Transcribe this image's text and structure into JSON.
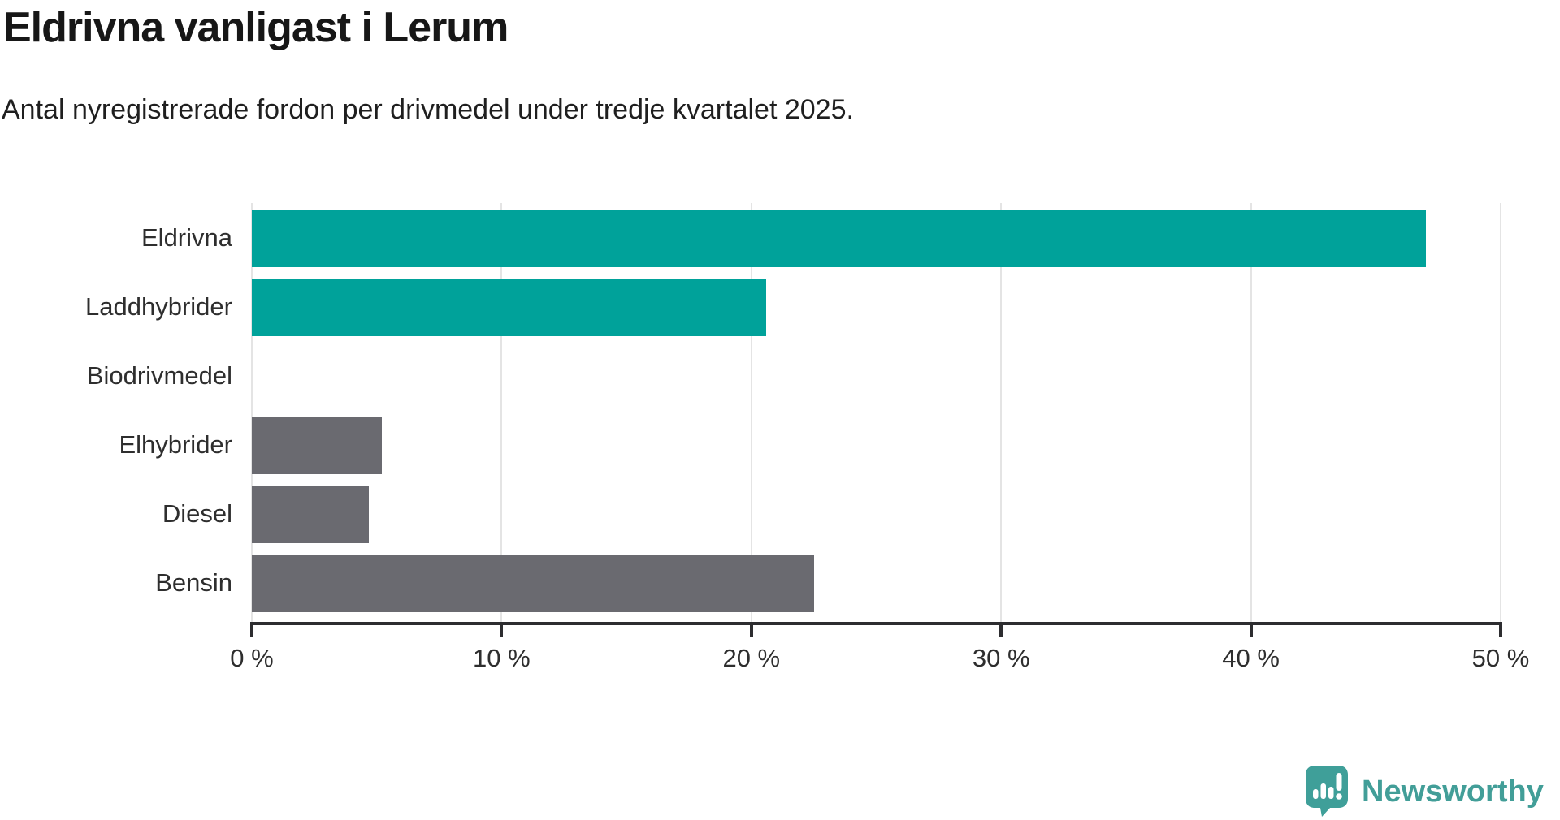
{
  "header": {
    "title": "Eldrivna vanligast i Lerum",
    "subtitle": "Antal nyregistrerade fordon per drivmedel under tredje kvartalet 2025."
  },
  "chart_data": {
    "type": "bar",
    "orientation": "horizontal",
    "title": "Eldrivna vanligast i Lerum",
    "subtitle": "Antal nyregistrerade fordon per drivmedel under tredje kvartalet 2025.",
    "categories": [
      "Eldrivna",
      "Laddhybrider",
      "Biodrivmedel",
      "Elhybrider",
      "Diesel",
      "Bensin"
    ],
    "values": [
      47,
      20.6,
      0,
      5.2,
      4.7,
      22.5
    ],
    "unit": "%",
    "bar_colors": [
      "#00a29a",
      "#00a29a",
      "#00a29a",
      "#6a6a70",
      "#6a6a70",
      "#6a6a70"
    ],
    "xlim": [
      0,
      50
    ],
    "x_ticks": [
      "0 %",
      "10 %",
      "20 %",
      "30 %",
      "40 %",
      "50 %"
    ],
    "x_tick_values": [
      0,
      10,
      20,
      30,
      40,
      50
    ],
    "grid": true,
    "legend": "none",
    "accent_color": "#00a29a",
    "neutral_color": "#6a6a70"
  },
  "footer": {
    "brand": "Newsworthy",
    "brand_color": "#429e98"
  }
}
